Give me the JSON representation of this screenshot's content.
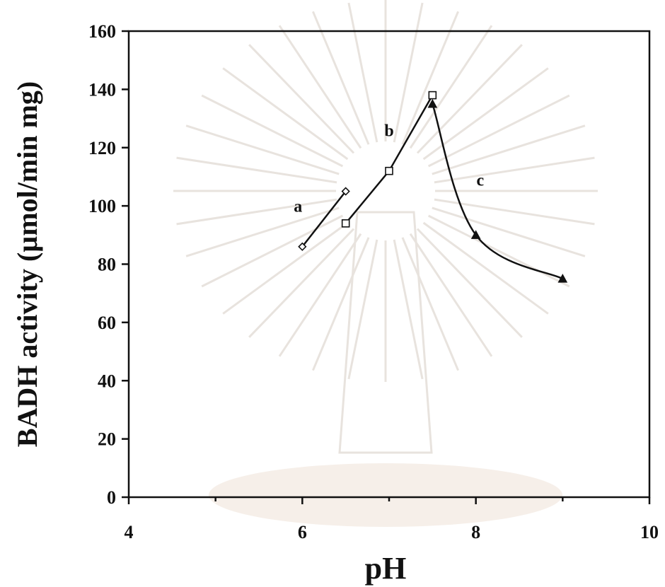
{
  "chart_data": {
    "type": "line",
    "xlabel": "pH",
    "ylabel": "BADH activity (µmol/min mg)",
    "xlim": [
      4,
      10
    ],
    "ylim": [
      0,
      160
    ],
    "xticks": [
      "4",
      "6",
      "8",
      "10"
    ],
    "yticks": [
      "0",
      "20",
      "40",
      "60",
      "80",
      "100",
      "120",
      "140",
      "160"
    ],
    "grid": false,
    "legend": "none",
    "series": [
      {
        "name": "a",
        "marker": "diamond-open",
        "smooth": false,
        "x": [
          6.0,
          6.5
        ],
        "y": [
          86,
          105
        ]
      },
      {
        "name": "b",
        "marker": "square-open",
        "smooth": false,
        "x": [
          6.5,
          7.0,
          7.5
        ],
        "y": [
          94,
          112,
          138
        ]
      },
      {
        "name": "c",
        "marker": "triangle-filled",
        "smooth": true,
        "x": [
          7.5,
          8.0,
          9.0
        ],
        "y": [
          135,
          90,
          75
        ]
      }
    ],
    "annotations": [
      {
        "text": "a",
        "x": 5.95,
        "y": 98
      },
      {
        "text": "b",
        "x": 7.0,
        "y": 124
      },
      {
        "text": "c",
        "x": 8.05,
        "y": 107
      }
    ]
  }
}
